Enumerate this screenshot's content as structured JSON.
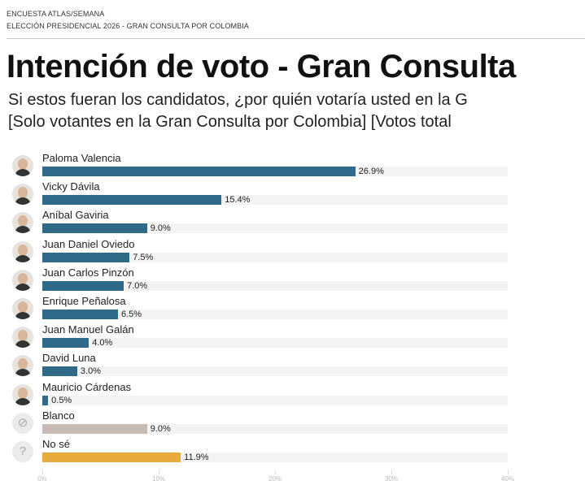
{
  "header": {
    "kicker1": "ENCUESTA ATLAS/SEMANA",
    "kicker2": "ELECCIÓN PRESIDENCIAL 2026 - GRAN CONSULTA POR COLOMBIA"
  },
  "chart_data": {
    "type": "bar",
    "orientation": "horizontal",
    "title": "Intención de voto - Gran Consulta",
    "subtitle1": "Si estos fueran los candidatos, ¿por quién votaría usted en la G",
    "subtitle2": "[Solo votantes en la Gran Consulta por Colombia] [Votos total",
    "categories": [
      "Paloma Valencia",
      "Vicky Dávila",
      "Aníbal Gaviria",
      "Juan Daniel Oviedo",
      "Juan Carlos Pinzón",
      "Enrique Peñalosa",
      "Juan Manuel Galán",
      "David Luna",
      "Mauricio Cárdenas",
      "Blanco",
      "No sé"
    ],
    "values": [
      26.9,
      15.4,
      9.0,
      7.5,
      7.0,
      6.5,
      4.0,
      3.0,
      0.5,
      9.0,
      11.9
    ],
    "labels": [
      "26.9%",
      "15.4%",
      "9.0%",
      "7.5%",
      "7.0%",
      "6.5%",
      "4.0%",
      "3.0%",
      "0.5%",
      "9.0%",
      "11.9%"
    ],
    "colors": [
      "#2f6b88",
      "#2f6b88",
      "#2f6b88",
      "#2f6b88",
      "#2f6b88",
      "#2f6b88",
      "#2f6b88",
      "#2f6b88",
      "#2f6b88",
      "#c6bbb4",
      "#e8aa3a"
    ],
    "icons": [
      "avatar",
      "avatar",
      "avatar",
      "avatar",
      "avatar",
      "avatar",
      "avatar",
      "avatar",
      "avatar",
      "blank-vote-icon",
      "question-icon"
    ],
    "xlim": [
      0,
      40
    ],
    "xticks": [
      "0%",
      "10%",
      "20%",
      "30%",
      "40%"
    ],
    "grid": false
  }
}
